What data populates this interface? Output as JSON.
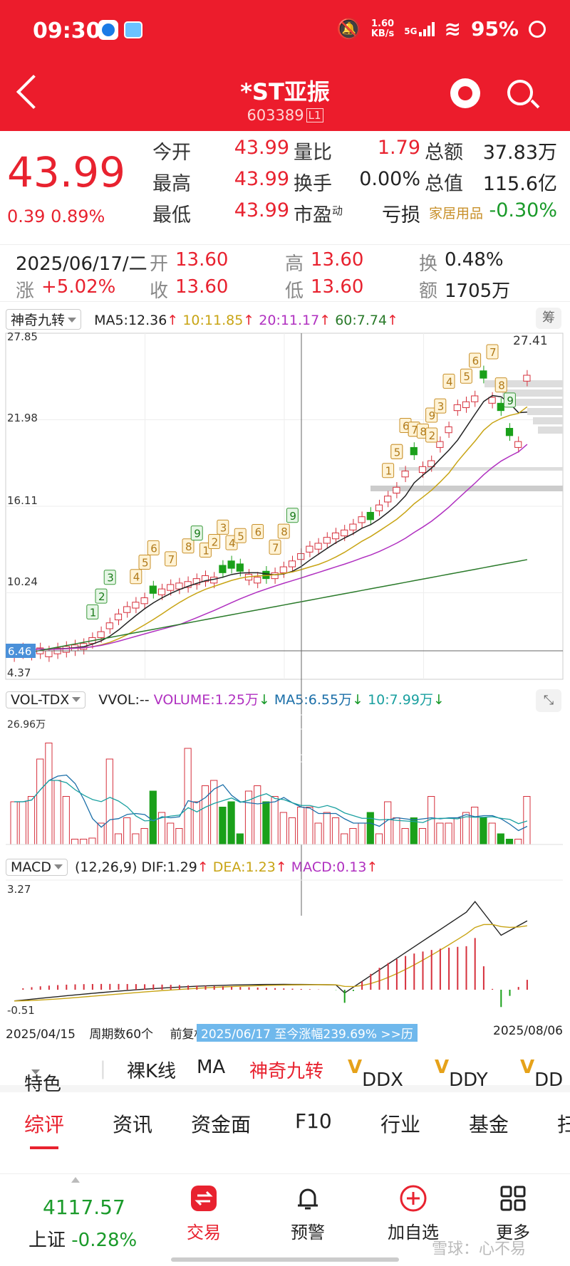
{
  "status": {
    "time": "09:30",
    "speed_top": "1.60",
    "speed_bottom": "KB/s",
    "net": "5G",
    "battery": "95%"
  },
  "header": {
    "title": "*ST亚振",
    "code": "603389",
    "badge": "L1"
  },
  "quote": {
    "price": "43.99",
    "change": "0.39",
    "change_pct": "0.89%",
    "rows": [
      [
        [
          "今开",
          "43.99"
        ],
        [
          "量比",
          "1.79"
        ],
        [
          "总额",
          "37.83万"
        ]
      ],
      [
        [
          "最高",
          "43.99"
        ],
        [
          "换手",
          "0.00%"
        ],
        [
          "总值",
          "115.6亿"
        ]
      ],
      [
        [
          "最低",
          "43.99"
        ],
        [
          "市盈",
          "亏损"
        ],
        [
          "家居用品",
          "-0.30%"
        ]
      ]
    ],
    "pe_sup": "动"
  },
  "day": {
    "date": "2025/06/17/二",
    "open_l": "开",
    "open_v": "13.60",
    "high_l": "高",
    "high_v": "13.60",
    "turn_l": "换",
    "turn_v": "0.48%",
    "chg_l": "涨",
    "chg_v": "+5.02%",
    "close_l": "收",
    "close_v": "13.60",
    "low_l": "低",
    "low_v": "13.60",
    "amt_l": "额",
    "amt_v": "1705万"
  },
  "kline": {
    "indicator": "神奇九转",
    "ma5": "MA5:12.36",
    "ma10": "10:11.85",
    "ma20": "20:11.17",
    "ma60": "60:7.74",
    "chip_btn": "筹",
    "y_labels": [
      "27.85",
      "21.98",
      "16.11",
      "10.24",
      "4.37"
    ],
    "cursor_price": "6.46",
    "high_mark": "27.41",
    "colors": {
      "up": "#d6303c",
      "down": "#1aa01a",
      "ma5": "#222222",
      "ma10": "#c8a414",
      "ma20": "#b030c0",
      "ma60": "#2a7a2a",
      "nine": "#c8902a"
    }
  },
  "vol": {
    "indicator": "VOL-TDX",
    "vvol": "VVOL:--",
    "volume": "VOLUME:1.25万",
    "ma5": "MA5:6.55万",
    "ma10": "10:7.99万",
    "max_label": "26.96万"
  },
  "macd": {
    "indicator": "MACD",
    "params": "(12,26,9)",
    "dif": "DIF:1.29",
    "dea": "DEA:1.23",
    "macd": "MACD:0.13",
    "top": "3.27",
    "bottom": "-0.51"
  },
  "axis": {
    "start": "2025/04/15",
    "period": "周期数60个",
    "adj": "前复权",
    "range_text": "2025/06/17 至今涨幅239.69%  >>历",
    "end": "2025/08/06"
  },
  "tools": [
    "特色",
    "裸K线",
    "MA",
    "神奇九转",
    "DDX",
    "DDY",
    "DD"
  ],
  "tabs": [
    "综评",
    "资讯",
    "资金面",
    "F10",
    "行业",
    "基金",
    "扫"
  ],
  "footer": {
    "index_value": "4117.57",
    "index_name": "上证",
    "index_change": "-0.28%",
    "trade": "交易",
    "alert": "预警",
    "watch": "加自选",
    "more": "更多"
  },
  "watermark": "雪球：心不易"
}
